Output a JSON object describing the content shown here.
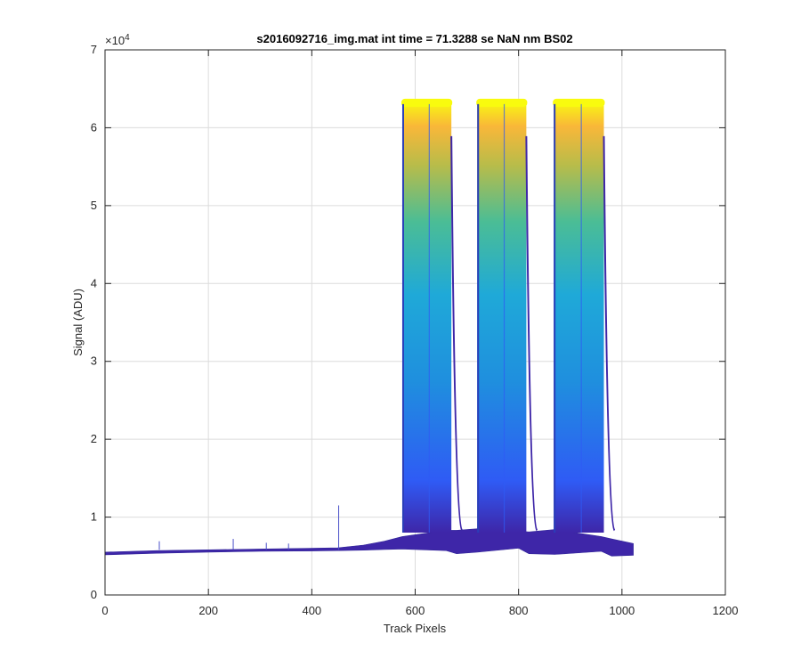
{
  "chart_data": {
    "type": "area",
    "title": "s2016092716_img.mat int time = 71.3288 se  NaN nm BS02",
    "xlabel": "Track Pixels",
    "ylabel": "Signal (ADU)",
    "xlim": [
      0,
      1200
    ],
    "ylim": [
      0,
      70000
    ],
    "x_ticks": [
      "0",
      "200",
      "400",
      "600",
      "800",
      "1000",
      "1200"
    ],
    "y_ticks": [
      "0",
      "1",
      "2",
      "3",
      "4",
      "5",
      "6",
      "7"
    ],
    "y_exponent_label": "×10",
    "y_exponent_power": "4",
    "grid": true,
    "colormap": [
      "#3e26a8",
      "#2f5bf5",
      "#1fa9d8",
      "#4bbd95",
      "#b8bc4a",
      "#f9b739",
      "#f9fb0e"
    ],
    "baseline": {
      "x": [
        0,
        100,
        200,
        300,
        400,
        450,
        500,
        540,
        575,
        660,
        680,
        720,
        800,
        820,
        870,
        960,
        980,
        1022
      ],
      "lower": [
        5150,
        5350,
        5500,
        5600,
        5650,
        5700,
        5750,
        5850,
        5900,
        5700,
        5300,
        5500,
        6000,
        5300,
        5200,
        5600,
        5000,
        5100
      ],
      "upper": [
        5500,
        5700,
        5800,
        5900,
        6000,
        6050,
        6400,
        6900,
        7500,
        8300,
        8300,
        8500,
        8200,
        8100,
        8400,
        7500,
        7200,
        6600
      ]
    },
    "saturated_bands": [
      {
        "start": 575,
        "end": 670,
        "peak": 63500
      },
      {
        "start": 720,
        "end": 815,
        "peak": 63500
      },
      {
        "start": 868,
        "end": 965,
        "peak": 63500
      }
    ],
    "spikes": [
      {
        "x": 452,
        "y": 11500
      },
      {
        "x": 248,
        "y": 7200
      },
      {
        "x": 105,
        "y": 6900
      },
      {
        "x": 312,
        "y": 6700
      },
      {
        "x": 355,
        "y": 6600
      }
    ]
  }
}
